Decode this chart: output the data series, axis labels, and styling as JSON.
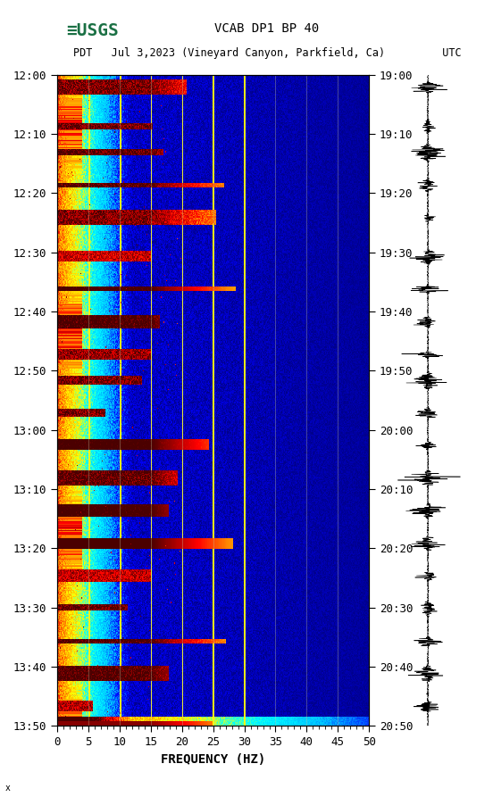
{
  "title_line1": "VCAB DP1 BP 40",
  "title_line2": "PDT   Jul 3,2023 (Vineyard Canyon, Parkfield, Ca)         UTC",
  "xlabel": "FREQUENCY (HZ)",
  "freq_min": 0,
  "freq_max": 50,
  "freq_ticks": [
    0,
    5,
    10,
    15,
    20,
    25,
    30,
    35,
    40,
    45,
    50
  ],
  "left_times": [
    "12:00",
    "12:10",
    "12:20",
    "12:30",
    "12:40",
    "12:50",
    "13:00",
    "13:10",
    "13:20",
    "13:30",
    "13:40",
    "13:50"
  ],
  "right_times": [
    "19:00",
    "19:10",
    "19:20",
    "19:30",
    "19:40",
    "19:50",
    "20:00",
    "20:10",
    "20:20",
    "20:30",
    "20:40",
    "20:50"
  ],
  "time_rows": 12,
  "fig_width": 5.52,
  "fig_height": 8.93,
  "dpi": 100,
  "usgs_green": "#1a7044",
  "bg_color": "#ffffff",
  "vline_color": "#c8c8a0",
  "vline_freqs": [
    5,
    10,
    15,
    20,
    25,
    30,
    35,
    40,
    45
  ],
  "tick_label_fontsize": 9,
  "title_fontsize": 10,
  "axis_label_fontsize": 10
}
